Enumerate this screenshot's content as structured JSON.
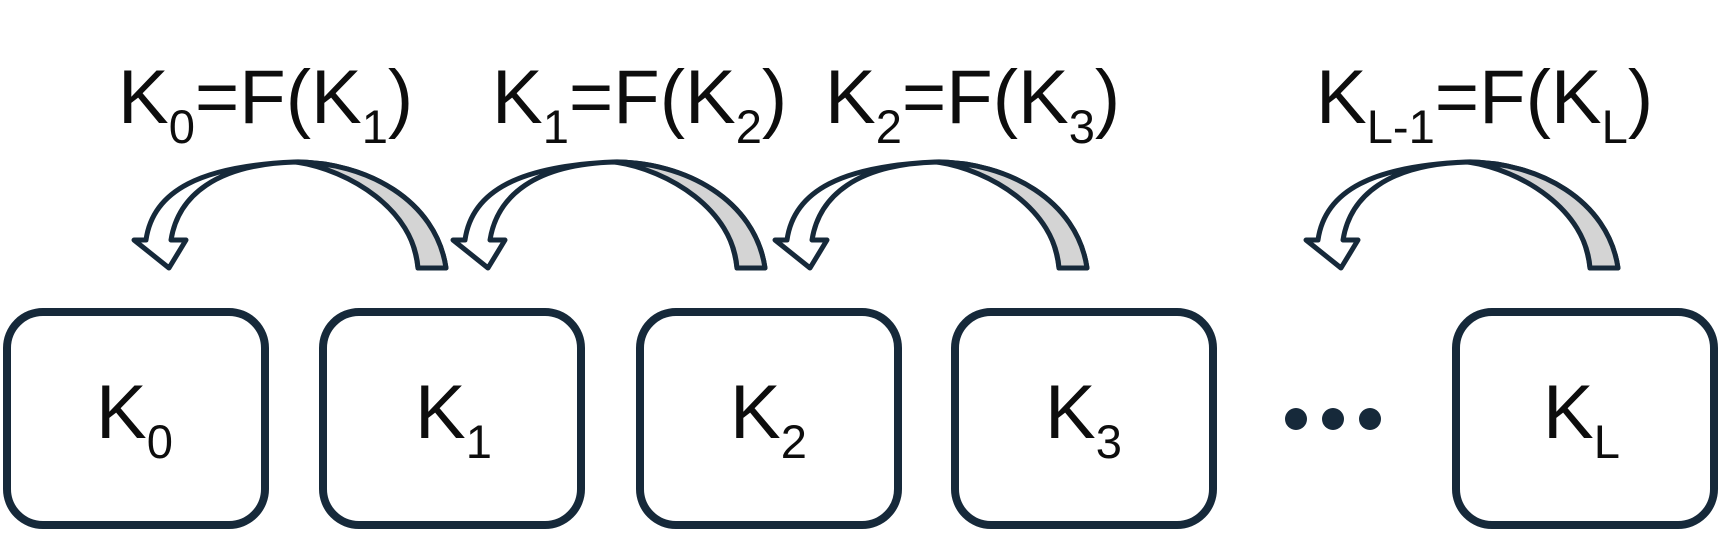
{
  "colors": {
    "stroke": "#16293a",
    "arrow_fill": "#d4d4d4",
    "background": "#ffffff",
    "text": "#0d0d0d"
  },
  "equations": [
    {
      "lhs": "K",
      "lhs_sub": "0",
      "mid": "=F(K",
      "rhs_sub": "1",
      "close": ")"
    },
    {
      "lhs": "K",
      "lhs_sub": "1",
      "mid": "=F(K",
      "rhs_sub": "2",
      "close": ")"
    },
    {
      "lhs": "K",
      "lhs_sub": "2",
      "mid": "=F(K",
      "rhs_sub": "3",
      "close": ")"
    },
    {
      "lhs": "K",
      "lhs_sub": "L-1",
      "mid": "=F(K",
      "rhs_sub": "L",
      "close": ")"
    }
  ],
  "boxes": [
    {
      "base": "K",
      "sub": "0"
    },
    {
      "base": "K",
      "sub": "1"
    },
    {
      "base": "K",
      "sub": "2"
    },
    {
      "base": "K",
      "sub": "3"
    },
    {
      "base": "K",
      "sub": "L"
    }
  ],
  "ellipsis_icon": "ellipsis-dots-icon",
  "arrow_icon": "curved-back-arrow-icon"
}
